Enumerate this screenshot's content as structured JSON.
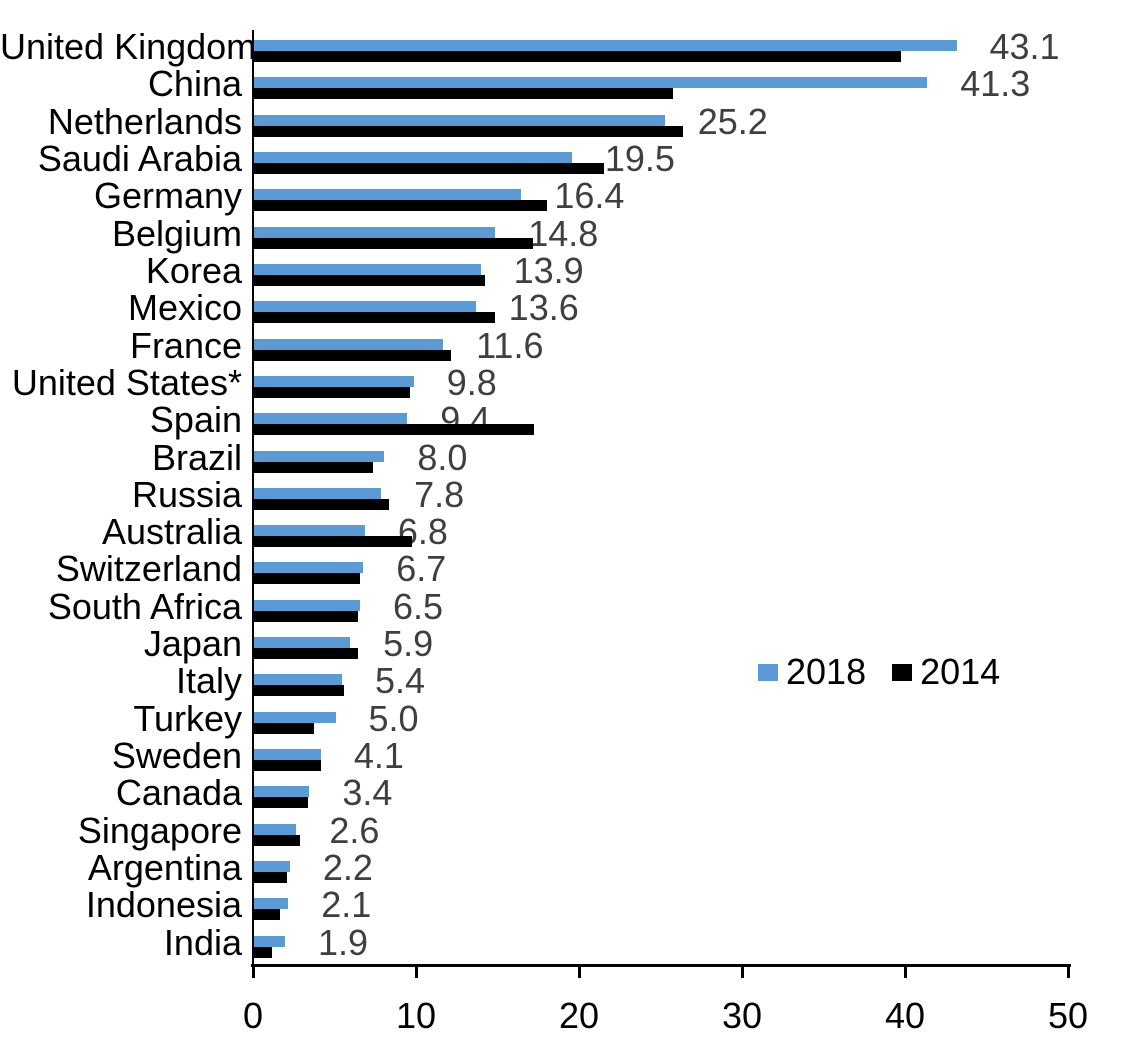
{
  "page": {
    "background": "#FFFFFF"
  },
  "chart_data": {
    "type": "bar",
    "orientation": "horizontal",
    "title": "",
    "xlabel": "",
    "ylabel": "",
    "xlim": [
      0,
      50
    ],
    "x_ticks": [
      "0",
      "10",
      "20",
      "30",
      "40",
      "50"
    ],
    "grid": "off",
    "legend": {
      "position": "middle-right",
      "entries": [
        "2018",
        "2014"
      ]
    },
    "data_label_color": "#3F3F3F",
    "axis_color": "#000000",
    "categories": [
      "United Kingdom",
      "China",
      "Netherlands",
      "Saudi Arabia",
      "Germany",
      "Belgium",
      "Korea",
      "Mexico",
      "France",
      "United States*",
      "Spain",
      "Brazil",
      "Russia",
      "Australia",
      "Switzerland",
      "South Africa",
      "Japan",
      "Italy",
      "Turkey",
      "Sweden",
      "Canada",
      "Singapore",
      "Argentina",
      "Indonesia",
      "India"
    ],
    "series": [
      {
        "name": "2018",
        "color": "#5B9BD5",
        "values": [
          43.1,
          41.3,
          25.2,
          19.5,
          16.4,
          14.8,
          13.9,
          13.6,
          11.6,
          9.8,
          9.4,
          8.0,
          7.8,
          6.8,
          6.7,
          6.5,
          5.9,
          5.4,
          5.0,
          4.1,
          3.4,
          2.6,
          2.2,
          2.1,
          1.9
        ],
        "data_labels": [
          "43.1",
          "41.3",
          "25.2",
          "19.5",
          "16.4",
          "14.8",
          "13.9",
          "13.6",
          "11.6",
          "9.8",
          "9.4",
          "8.0",
          "7.8",
          "6.8",
          "6.7",
          "6.5",
          "5.9",
          "5.4",
          "5.0",
          "4.1",
          "3.4",
          "2.6",
          "2.2",
          "2.1",
          "1.9"
        ]
      },
      {
        "name": "2014",
        "color": "#000000",
        "values": [
          39.7,
          25.7,
          26.3,
          21.5,
          18.0,
          17.1,
          14.2,
          14.8,
          12.1,
          9.6,
          17.2,
          7.3,
          8.3,
          9.7,
          6.5,
          6.4,
          6.4,
          5.5,
          3.7,
          4.1,
          3.3,
          2.8,
          2.0,
          1.6,
          1.1
        ]
      }
    ]
  }
}
